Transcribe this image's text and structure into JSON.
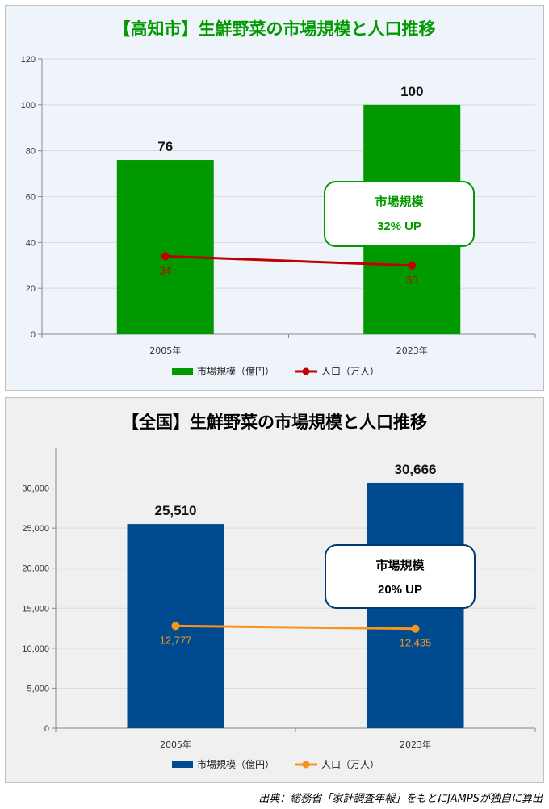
{
  "chart_data": [
    {
      "type": "bar",
      "title": "【高知市】生鮮野菜の市場規模と人口推移",
      "categories": [
        "2005年",
        "2023年"
      ],
      "series": [
        {
          "name": "市場規模（億円）",
          "kind": "bar",
          "values": [
            76,
            100
          ],
          "labels": [
            "76",
            "100"
          ],
          "color": "#009900"
        },
        {
          "name": "人口（万人）",
          "kind": "line",
          "values": [
            34,
            30
          ],
          "labels": [
            "34",
            "30"
          ],
          "color": "#c00000"
        }
      ],
      "ylim": [
        0,
        120
      ],
      "yticks": [
        0,
        20,
        40,
        60,
        80,
        100,
        120
      ],
      "ytick_labels": [
        "0",
        "20",
        "40",
        "60",
        "80",
        "100",
        "120"
      ],
      "grid": true,
      "legend": "bottom",
      "callout": {
        "line1": "市場規模",
        "line2": "32% UP",
        "color": "#009900"
      },
      "title_color": "#009900"
    },
    {
      "type": "bar",
      "title": "【全国】生鮮野菜の市場規模と人口推移",
      "categories": [
        "2005年",
        "2023年"
      ],
      "series": [
        {
          "name": "市場規模（億円）",
          "kind": "bar",
          "values": [
            25510,
            30666
          ],
          "labels": [
            "25,510",
            "30,666"
          ],
          "color": "#004a8f"
        },
        {
          "name": "人口（万人）",
          "kind": "line",
          "values": [
            12777,
            12435
          ],
          "labels": [
            "12,777",
            "12,435"
          ],
          "color": "#f7941d"
        }
      ],
      "ylim": [
        0,
        35000
      ],
      "yticks": [
        0,
        5000,
        10000,
        15000,
        20000,
        25000,
        30000
      ],
      "ytick_labels": [
        "0",
        "5,000",
        "10,000",
        "15,000",
        "20,000",
        "25,000",
        "30,000"
      ],
      "grid": true,
      "legend": "bottom",
      "callout": {
        "line1": "市場規模",
        "line2": "20% UP",
        "color": "#003a70"
      },
      "title_color": "#000000"
    }
  ],
  "source_note": "出典：総務省「家計調査年報」をもとにJAMPSが独自に算出"
}
